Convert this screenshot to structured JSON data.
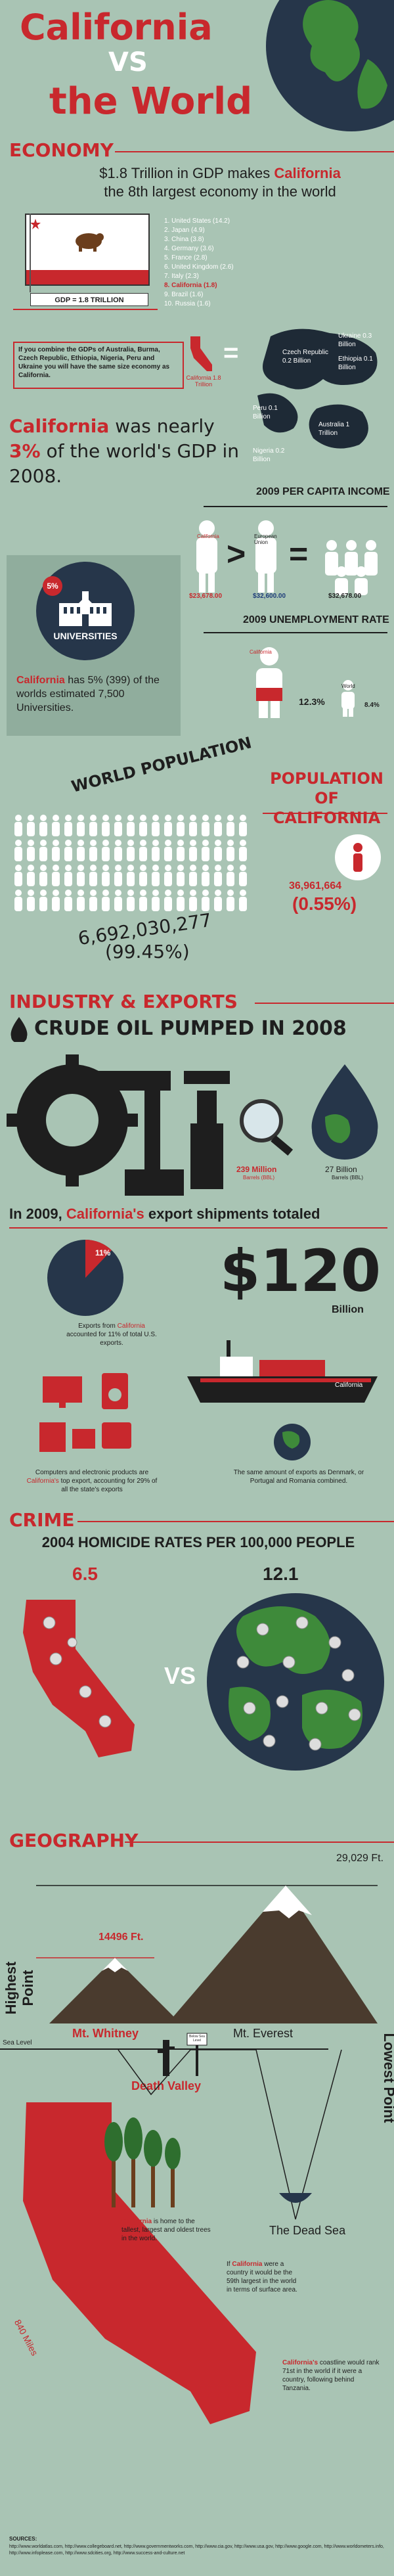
{
  "header": {
    "title_line1": "California",
    "title_vs": "VS",
    "title_line2": "the World"
  },
  "economy": {
    "section": "ECONOMY",
    "headline_pre": "$1.8 Trillion in GDP makes ",
    "headline_ca": "California",
    "headline_post": "the 8th largest economy in the world",
    "flag_caption": "GDP = 1.8 TRILLION",
    "ranking": [
      "1. United States (14.2)",
      "2. Japan (4.9)",
      "3. China (3.8)",
      "4. Germany (3.6)",
      "5. France (2.8)",
      "6. United Kingdom (2.6)",
      "7. Italy (2.3)",
      "8. California (1.8)",
      "9. Brazil (1.6)",
      "10. Russia (1.6)"
    ],
    "combine_note": "If you combine the GDPs of Australia, Burma, Czech Republic, Ethiopia, Nigeria, Peru and Ukraine you will have the same size economy as California.",
    "ca_label": "California 1.8 Trillion",
    "map_labels": [
      {
        "t": "Ukraine 0.3 Billion"
      },
      {
        "t": "Czech Republic 0.2 Billion"
      },
      {
        "t": "Ethiopia 0.1 Billion"
      },
      {
        "t": "Australia 1 Trillion"
      },
      {
        "t": "Peru 0.1 Billion"
      },
      {
        "t": "Nigeria 0.2 Billion"
      }
    ],
    "nearly_pre": "California",
    "nearly_mid": " was nearly ",
    "nearly_pct": "3%",
    "nearly_post": " of the world's GDP in 2008."
  },
  "income": {
    "title": "2009 PER CAPITA INCOME",
    "ca_value": "$23,678.00",
    "eu_value": "$32,600.00",
    "eu_label": "European Union",
    "rest_value": "$32,678.00",
    "ca_label": "California"
  },
  "universities": {
    "badge_pct": "5%",
    "badge_label": "UNIVERSITIES",
    "text_ca": "California",
    "text_rest": " has 5% (399) of the worlds estimated 7,500 Universities."
  },
  "unemployment": {
    "title": "2009 UNEMPLOYMENT RATE",
    "ca_label": "California",
    "ca_value": "12.3%",
    "world_label": "World",
    "world_value": "8.4%"
  },
  "population": {
    "world_title": "WORLD POPULATION",
    "ca_title": "POPULATION OF CALIFORNIA",
    "world_value": "6,692,030,277",
    "world_pct": "(99.45%)",
    "ca_value": "36,961,664",
    "ca_pct": "(0.55%)"
  },
  "industry": {
    "section": "INDUSTRY & EXPORTS",
    "oil_title": "CRUDE OIL PUMPED IN 2008",
    "ca_oil": "239 Million",
    "ca_oil_unit": "Barrels (BBL)",
    "world_oil": "27 Billion",
    "world_oil_unit": "Barrels (BBL)",
    "export_pre": "In 2009, ",
    "export_ca": "California's",
    "export_post": " export shipments totaled",
    "export_amount": "$120",
    "export_unit": "Billion",
    "pie_pct": "11%",
    "pie_text_pre": "Exports from ",
    "pie_text_ca": "California",
    "pie_text_post": " accounted for 11% of total U.S. exports.",
    "ship_label": "California",
    "electronics_text_pre": "Computers and electronic products are ",
    "electronics_text_ca": "California's",
    "electronics_text_post": " top export, accounting for 29% of all the state's exports",
    "globe_text": "The same amount of exports as Denmark, or Portugal and Romania combined."
  },
  "crime": {
    "section": "CRIME",
    "title": "2004 HOMICIDE RATES PER 100,000 PEOPLE",
    "ca_rate": "6.5",
    "world_rate": "12.1",
    "vs": "VS"
  },
  "geography": {
    "section": "GEOGRAPHY",
    "highest": "Highest Point",
    "lowest": "Lowest Point",
    "sea_level": "Sea Level",
    "everest_ft": "29,029 Ft.",
    "whitney_ft": "14496 Ft.",
    "whitney": "Mt. Whitney",
    "everest": "Mt. Everest",
    "death_valley": "Death Valley",
    "dead_sea": "The Dead Sea",
    "sign_text": "Below Sea Level",
    "trees_ca": "California",
    "trees_text": " is home to the tallest, largest and oldest trees in the world.",
    "country_pre": "If ",
    "country_ca": "California",
    "country_post": " were a country it would be the 59th largest in the world in terms of surface area.",
    "coast_ca": "California's",
    "coast_post": " coastline would rank 71st in the world if it were a country, following behind Tanzania.",
    "miles": "840 Miles"
  },
  "footer": {
    "sources_title": "SOURCES:",
    "sources": "http://www.worldatlas.com, http://www.collegeboard.net, http://www.governmentworks.com, http://www.cia.gov, http://www.usa.gov, http://www.google.com, http://www.worldometers.info, http://www.infoplease.com, http://www.sdcities.org, http://www.success-and-culture.net"
  },
  "colors": {
    "bg": "#a9c4b4",
    "red": "#c8282d",
    "dark": "#1e1e1e",
    "ocean": "#26364a",
    "land": "#3e8a3a"
  }
}
